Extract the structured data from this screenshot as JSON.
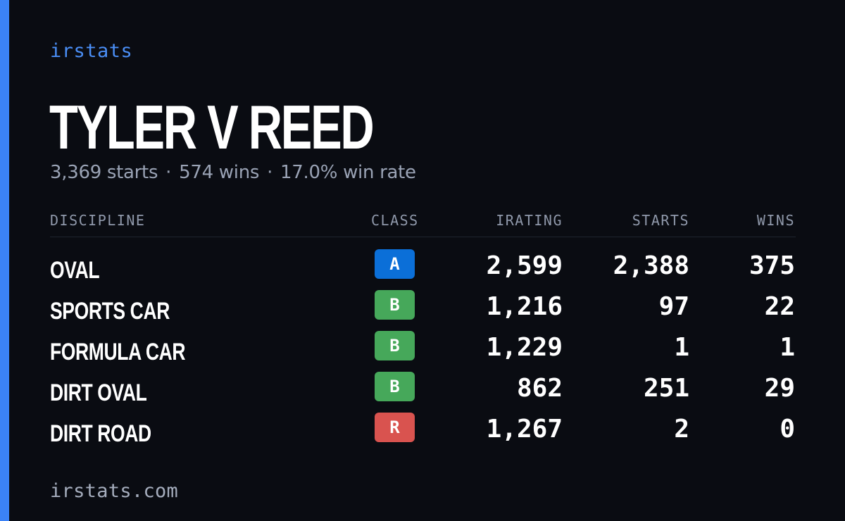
{
  "brand": "irstats",
  "driver": {
    "name": "TYLER V REED"
  },
  "summary": {
    "starts": "3,369 starts",
    "wins": "574 wins",
    "win_rate": "17.0% win rate",
    "separator": "·"
  },
  "table": {
    "headers": {
      "discipline": "DISCIPLINE",
      "class": "CLASS",
      "irating": "IRATING",
      "starts": "STARTS",
      "wins": "WINS"
    },
    "rows": [
      {
        "discipline": "OVAL",
        "class": "A",
        "class_color": "#0b6fd8",
        "irating": "2,599",
        "starts": "2,388",
        "wins": "375"
      },
      {
        "discipline": "SPORTS CAR",
        "class": "B",
        "class_color": "#46a85a",
        "irating": "1,216",
        "starts": "97",
        "wins": "22"
      },
      {
        "discipline": "FORMULA CAR",
        "class": "B",
        "class_color": "#46a85a",
        "irating": "1,229",
        "starts": "1",
        "wins": "1"
      },
      {
        "discipline": "DIRT OVAL",
        "class": "B",
        "class_color": "#46a85a",
        "irating": "862",
        "starts": "251",
        "wins": "29"
      },
      {
        "discipline": "DIRT ROAD",
        "class": "R",
        "class_color": "#d9534f",
        "irating": "1,267",
        "starts": "2",
        "wins": "0"
      }
    ]
  },
  "footer": "irstats.com",
  "colors": {
    "background": "#0a0c12",
    "accent": "#3b82f6"
  }
}
